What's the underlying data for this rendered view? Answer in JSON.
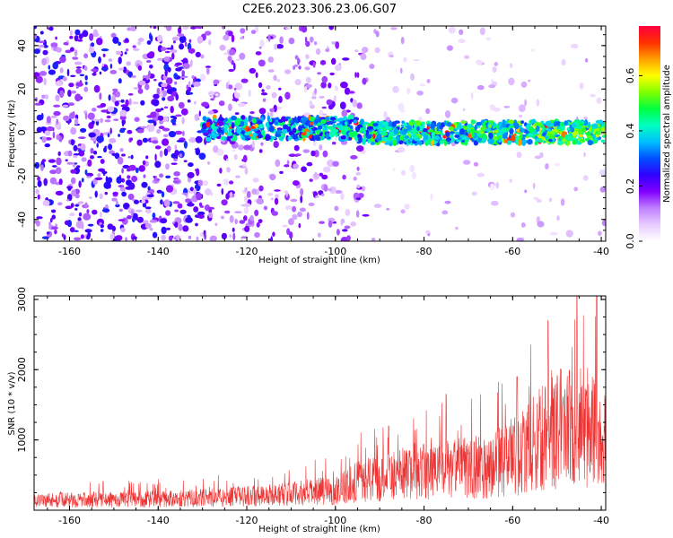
{
  "title": "C2E6.2023.306.23.06.G07",
  "chart_data": [
    {
      "type": "heatmap",
      "description_values": "spectrogram: a narrow high-amplitude band near 0 Hz from about -130 km to -39 km; scattered low-amplitude noise elsewhere, dense at heights below -93 km",
      "xlabel": "Height of straight line (km)",
      "ylabel": "Frequency (Hz)",
      "xlim": [
        -168,
        -39
      ],
      "ylim": [
        -50,
        49
      ],
      "x_ticks": [
        "-160",
        "-140",
        "-120",
        "-100",
        "-80",
        "-60",
        "-40"
      ],
      "y_ticks": [
        "-40",
        "-20",
        "0",
        "20",
        "40"
      ],
      "band": {
        "x_start": -130,
        "x_end": -39,
        "center_hz": 0,
        "half_width_hz": 5
      },
      "noise": {
        "dense_x_start": -168,
        "dense_x_end": -93
      },
      "colorbar": {
        "label": "Normalized spectral amplitude",
        "range": [
          0.0,
          0.78
        ],
        "ticks": [
          "0.0",
          "0.2",
          "0.4",
          "0.6"
        ],
        "colors": [
          "#ffffff",
          "#e8ccff",
          "#c080ff",
          "#8000ff",
          "#3000ff",
          "#0050ff",
          "#00c0ff",
          "#00ffc0",
          "#00ff40",
          "#80ff00",
          "#ffff00",
          "#ffa000",
          "#ff3000",
          "#ff0040"
        ]
      }
    },
    {
      "type": "line",
      "description_values": "SNR noise trace vs height: ~150-250 from -168 to -110 km, rising to ~400-600 near -90 km, ~800-1200 near -60 km, spikes to 2700 at -52 km and above 3000 at -45 km",
      "xlabel": "Height of straight line (km)",
      "ylabel": "SNR (10 * v/v)",
      "xlim": [
        -168,
        -39
      ],
      "ylim": [
        0,
        3050
      ],
      "x_ticks": [
        "-160",
        "-140",
        "-120",
        "-100",
        "-80",
        "-60",
        "-40"
      ],
      "y_ticks": [
        "1000",
        "2000",
        "3000"
      ],
      "color": "#ee3333",
      "envelope": [
        [
          -168,
          250
        ],
        [
          -150,
          260
        ],
        [
          -130,
          300
        ],
        [
          -120,
          350
        ],
        [
          -110,
          400
        ],
        [
          -100,
          500
        ],
        [
          -95,
          700
        ],
        [
          -85,
          900
        ],
        [
          -75,
          1000
        ],
        [
          -65,
          1100
        ],
        [
          -58,
          1400
        ],
        [
          -52,
          1900
        ],
        [
          -46,
          2100
        ],
        [
          -40,
          1800
        ]
      ],
      "peaks": [
        [
          -52,
          2700
        ],
        [
          -45.5,
          3050
        ],
        [
          -41,
          3050
        ],
        [
          -59,
          1900
        ],
        [
          -75,
          1650
        ],
        [
          -88,
          1200
        ]
      ]
    }
  ]
}
